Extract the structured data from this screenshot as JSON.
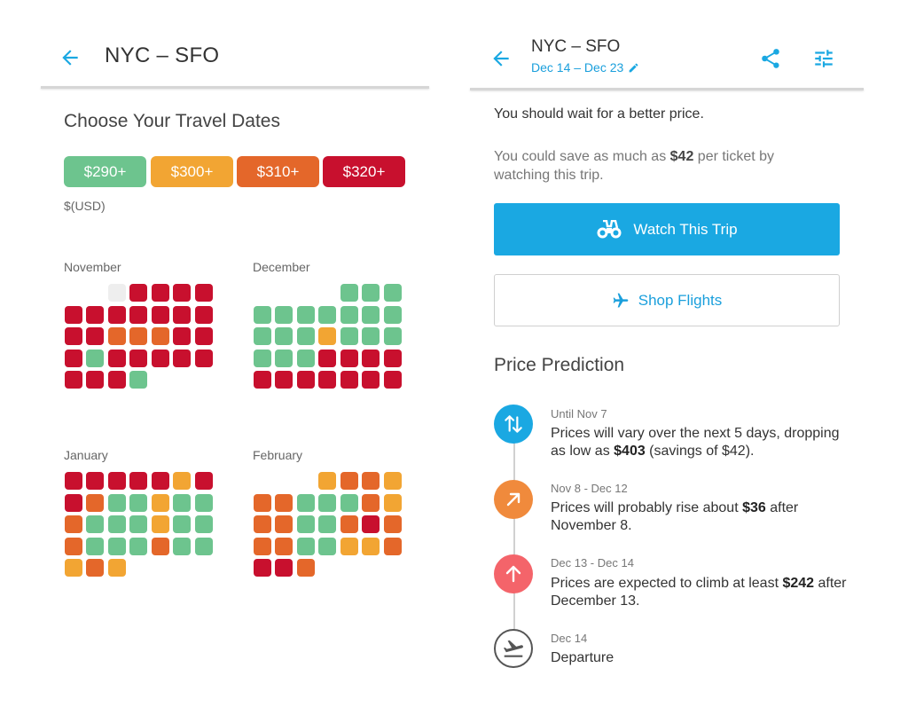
{
  "left": {
    "route_title": "NYC – SFO",
    "heading": "Choose Your Travel Dates",
    "legend": [
      {
        "label": "$290+",
        "color": "#6dc48e"
      },
      {
        "label": "$300+",
        "color": "#f2a533"
      },
      {
        "label": "$310+",
        "color": "#e4672a"
      },
      {
        "label": "$320+",
        "color": "#c8102e"
      }
    ],
    "currency": "$(USD)",
    "calendars": [
      {
        "month": "November",
        "rows": [
          [
            "",
            "",
            "",
            "X",
            "R",
            "R",
            "R",
            "R"
          ],
          [
            "",
            "R",
            "R",
            "R",
            "R",
            "R",
            "R",
            "R"
          ],
          [
            "",
            "R",
            "R",
            "O",
            "O",
            "O",
            "R",
            "R"
          ],
          [
            "",
            "R",
            "G",
            "R",
            "R",
            "R",
            "R",
            "R"
          ],
          [
            "",
            "R",
            "R",
            "R",
            "G",
            "",
            "",
            ""
          ]
        ]
      },
      {
        "month": "December",
        "rows": [
          [
            "",
            "",
            "",
            "",
            "",
            "G",
            "G",
            "G"
          ],
          [
            "",
            "G",
            "G",
            "G",
            "G",
            "G",
            "G",
            "G"
          ],
          [
            "",
            "G",
            "G",
            "G",
            "Y",
            "G",
            "G",
            "G"
          ],
          [
            "",
            "G",
            "G",
            "G",
            "R",
            "R",
            "R",
            "R"
          ],
          [
            "",
            "R",
            "R",
            "R",
            "R",
            "R",
            "R",
            "R"
          ]
        ]
      },
      {
        "month": "January",
        "rows": [
          [
            "",
            "R",
            "R",
            "R",
            "R",
            "R",
            "Y",
            "R"
          ],
          [
            "",
            "R",
            "O",
            "G",
            "G",
            "Y",
            "G",
            "G"
          ],
          [
            "",
            "O",
            "G",
            "G",
            "G",
            "Y",
            "G",
            "G"
          ],
          [
            "",
            "O",
            "G",
            "G",
            "G",
            "O",
            "G",
            "G"
          ],
          [
            "",
            "Y",
            "O",
            "Y",
            "",
            "",
            "",
            ""
          ]
        ]
      },
      {
        "month": "February",
        "rows": [
          [
            "",
            "",
            "",
            "",
            "Y",
            "O",
            "O",
            "Y"
          ],
          [
            "",
            "O",
            "O",
            "G",
            "G",
            "G",
            "O",
            "Y"
          ],
          [
            "",
            "O",
            "O",
            "G",
            "G",
            "O",
            "R",
            "O"
          ],
          [
            "",
            "O",
            "O",
            "G",
            "G",
            "Y",
            "Y",
            "O"
          ],
          [
            "",
            "R",
            "R",
            "O",
            "",
            "",
            "",
            ""
          ]
        ]
      }
    ]
  },
  "right": {
    "route_title": "NYC – SFO",
    "dates": "Dec 14 – Dec 23",
    "advice": "You should wait for a better price.",
    "save_prefix": "You could save as much as ",
    "save_amount": "$42",
    "save_suffix": " per ticket by watching this trip.",
    "watch_label": "Watch This Trip",
    "shop_label": "Shop Flights",
    "prediction_title": "Price Prediction",
    "timeline": [
      {
        "date": "Until Nov 7",
        "pre": "Prices will vary over the next 5 days, dropping as low as ",
        "bold": "$403",
        "post": " (savings of $42).",
        "icon": "swap-arrows-icon",
        "color": "#1aa8e2"
      },
      {
        "date": "Nov 8 - Dec 12",
        "pre": "Prices will probably rise about ",
        "bold": "$36",
        "post": " after November 8.",
        "icon": "arrow-up-right-icon",
        "color": "#f08a3c"
      },
      {
        "date": "Dec 13 - Dec 14",
        "pre": "Prices are expected to climb at least ",
        "bold": "$242",
        "post": " after December 13.",
        "icon": "arrow-up-icon",
        "color": "#f4646a"
      },
      {
        "date": "Dec 14",
        "pre": "Departure",
        "bold": "",
        "post": "",
        "icon": "plane-icon",
        "color": "#ffffff"
      }
    ]
  },
  "colors": {
    "G": "#6dc48e",
    "Y": "#f2a533",
    "O": "#e4672a",
    "R": "#c8102e",
    "X": "#eeeeee",
    "accent": "#1aa8e2"
  }
}
